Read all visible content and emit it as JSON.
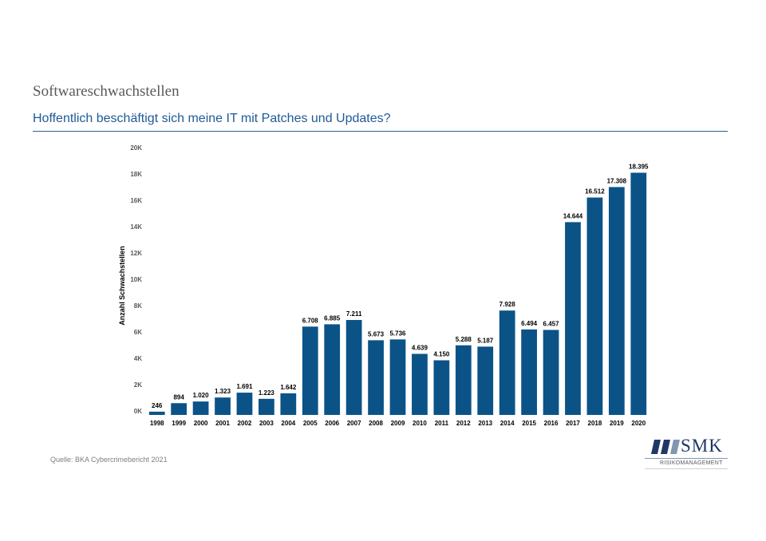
{
  "title": "Softwareschwachstellen",
  "subtitle": "Hoffentlich beschäftigt sich meine IT mit Patches und Updates?",
  "source": "Quelle: BKA Cybercrimebericht 2021",
  "logo": {
    "name": "SMK",
    "tagline": "RISIKOMANAGEMENT"
  },
  "colors": {
    "bar": "#0b5387",
    "title": "#595959",
    "subtitle": "#1f5a96",
    "rule": "#2e5f8a",
    "logo": "#1f3864"
  },
  "chart_data": {
    "type": "bar",
    "ylabel": "Anzahl Schwachstellen",
    "ylim": [
      0,
      20000
    ],
    "yticks": [
      0,
      2000,
      4000,
      6000,
      8000,
      10000,
      12000,
      14000,
      16000,
      18000,
      20000
    ],
    "ytick_labels": [
      "0K",
      "2K",
      "4K",
      "6K",
      "8K",
      "10K",
      "12K",
      "14K",
      "16K",
      "18K",
      "20K"
    ],
    "grid": false,
    "categories": [
      "1998",
      "1999",
      "2000",
      "2001",
      "2002",
      "2003",
      "2004",
      "2005",
      "2006",
      "2007",
      "2008",
      "2009",
      "2010",
      "2011",
      "2012",
      "2013",
      "2014",
      "2015",
      "2016",
      "2017",
      "2018",
      "2019",
      "2020"
    ],
    "values": [
      246,
      894,
      1020,
      1323,
      1691,
      1223,
      1642,
      6708,
      6885,
      7211,
      5673,
      5736,
      4639,
      4150,
      5288,
      5187,
      7928,
      6494,
      6457,
      14644,
      16512,
      17308,
      18395
    ],
    "value_labels": [
      "246",
      "894",
      "1.020",
      "1.323",
      "1.691",
      "1.223",
      "1.642",
      "6.708",
      "6.885",
      "7.211",
      "5.673",
      "5.736",
      "4.639",
      "4.150",
      "5.288",
      "5.187",
      "7.928",
      "6.494",
      "6.457",
      "14.644",
      "16.512",
      "17.308",
      "18.395"
    ]
  }
}
